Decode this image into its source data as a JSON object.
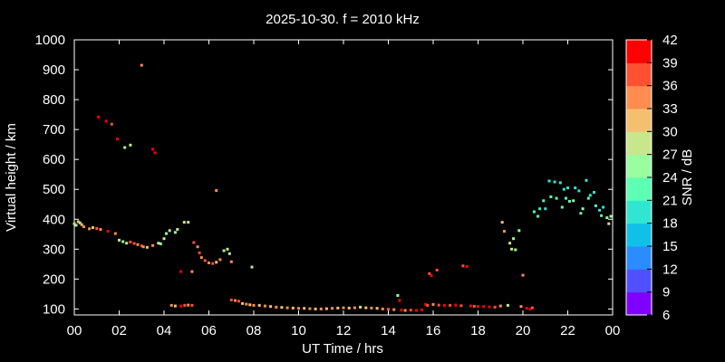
{
  "chart_data": {
    "type": "scatter",
    "title": "2025-10-30. f = 2010 kHz",
    "xlabel": "UT Time / hrs",
    "ylabel": "Virtual height / km",
    "xlim": [
      0,
      24
    ],
    "ylim": [
      80,
      1000
    ],
    "x_ticks": [
      "00",
      "02",
      "04",
      "06",
      "08",
      "10",
      "12",
      "14",
      "16",
      "18",
      "20",
      "22",
      "00"
    ],
    "y_ticks": [
      "100",
      "200",
      "300",
      "400",
      "500",
      "600",
      "700",
      "800",
      "900",
      "1000"
    ],
    "colorbar": {
      "label": "SNR / dB",
      "ticks": [
        "6",
        "9",
        "12",
        "15",
        "18",
        "21",
        "24",
        "27",
        "30",
        "33",
        "36",
        "39",
        "42"
      ],
      "colors": [
        "#8000ff",
        "#5050ff",
        "#2a8cff",
        "#10c0e6",
        "#30e6d0",
        "#5cffb4",
        "#98fea0",
        "#c8e68c",
        "#f4c070",
        "#ff8c50",
        "#ff5032",
        "#ff0000"
      ]
    },
    "background": "#000000",
    "points": [
      [
        0.0,
        385,
        24
      ],
      [
        0.08,
        380,
        27
      ],
      [
        0.17,
        392,
        30
      ],
      [
        0.25,
        388,
        27
      ],
      [
        0.33,
        382,
        30
      ],
      [
        0.42,
        375,
        33
      ],
      [
        0.67,
        368,
        33
      ],
      [
        0.83,
        372,
        30
      ],
      [
        1.0,
        369,
        36
      ],
      [
        1.17,
        366,
        33
      ],
      [
        1.5,
        360,
        39
      ],
      [
        1.83,
        352,
        33
      ],
      [
        2.0,
        330,
        27
      ],
      [
        2.17,
        325,
        24
      ],
      [
        2.33,
        320,
        27
      ],
      [
        2.5,
        324,
        36
      ],
      [
        2.67,
        319,
        36
      ],
      [
        2.83,
        315,
        33
      ],
      [
        3.0,
        311,
        36
      ],
      [
        3.08,
        308,
        33
      ],
      [
        3.25,
        306,
        30
      ],
      [
        3.5,
        312,
        33
      ],
      [
        3.75,
        320,
        27
      ],
      [
        3.85,
        318,
        24
      ],
      [
        4.0,
        335,
        27
      ],
      [
        4.1,
        352,
        24
      ],
      [
        4.25,
        362,
        27
      ],
      [
        4.5,
        356,
        24
      ],
      [
        4.6,
        366,
        27
      ],
      [
        1.08,
        742,
        42
      ],
      [
        1.42,
        728,
        42
      ],
      [
        1.67,
        718,
        36
      ],
      [
        1.92,
        668,
        39
      ],
      [
        2.25,
        640,
        24
      ],
      [
        2.5,
        648,
        27
      ],
      [
        3.0,
        915,
        33
      ],
      [
        3.5,
        634,
        42
      ],
      [
        3.6,
        622,
        42
      ],
      [
        6.33,
        496,
        33
      ],
      [
        4.75,
        225,
        42
      ],
      [
        4.9,
        390,
        27
      ],
      [
        5.08,
        390,
        27
      ],
      [
        5.25,
        225,
        33
      ],
      [
        5.33,
        322,
        36
      ],
      [
        5.5,
        308,
        33
      ],
      [
        5.58,
        288,
        36
      ],
      [
        5.67,
        272,
        33
      ],
      [
        5.83,
        262,
        36
      ],
      [
        6.0,
        254,
        33
      ],
      [
        6.17,
        252,
        36
      ],
      [
        6.33,
        256,
        30
      ],
      [
        6.5,
        265,
        33
      ],
      [
        6.67,
        295,
        24
      ],
      [
        6.83,
        300,
        27
      ],
      [
        6.92,
        285,
        27
      ],
      [
        7.0,
        258,
        33
      ],
      [
        7.92,
        240,
        27
      ],
      [
        4.33,
        112,
        33
      ],
      [
        4.5,
        110,
        30
      ],
      [
        4.75,
        110,
        42
      ],
      [
        4.92,
        112,
        36
      ],
      [
        5.08,
        113,
        33
      ],
      [
        5.25,
        112,
        36
      ],
      [
        7.0,
        130,
        36
      ],
      [
        7.17,
        128,
        33
      ],
      [
        7.33,
        126,
        36
      ],
      [
        7.5,
        118,
        30
      ],
      [
        7.67,
        116,
        33
      ],
      [
        7.83,
        114,
        30
      ],
      [
        8.0,
        112,
        33
      ],
      [
        8.25,
        112,
        30
      ],
      [
        8.5,
        110,
        33
      ],
      [
        8.75,
        108,
        30
      ],
      [
        9.0,
        106,
        33
      ],
      [
        9.25,
        105,
        30
      ],
      [
        9.5,
        104,
        33
      ],
      [
        9.75,
        103,
        30
      ],
      [
        10.0,
        102,
        33
      ],
      [
        10.25,
        102,
        30
      ],
      [
        10.5,
        101,
        33
      ],
      [
        10.75,
        100,
        30
      ],
      [
        11.0,
        100,
        33
      ],
      [
        11.25,
        101,
        30
      ],
      [
        11.5,
        102,
        33
      ],
      [
        11.75,
        103,
        30
      ],
      [
        12.0,
        104,
        33
      ],
      [
        12.25,
        103,
        30
      ],
      [
        12.5,
        104,
        33
      ],
      [
        12.75,
        106,
        27
      ],
      [
        13.0,
        104,
        30
      ],
      [
        13.25,
        103,
        33
      ],
      [
        13.5,
        102,
        30
      ],
      [
        13.75,
        100,
        33
      ],
      [
        14.0,
        99,
        36
      ],
      [
        14.25,
        98,
        33
      ],
      [
        14.42,
        145,
        24
      ],
      [
        14.5,
        128,
        39
      ],
      [
        14.58,
        96,
        39
      ],
      [
        14.75,
        95,
        33
      ],
      [
        15.0,
        96,
        36
      ],
      [
        15.25,
        95,
        39
      ],
      [
        15.5,
        97,
        39
      ],
      [
        15.67,
        115,
        39
      ],
      [
        15.75,
        112,
        36
      ],
      [
        15.83,
        218,
        36
      ],
      [
        15.92,
        212,
        39
      ],
      [
        16.0,
        115,
        33
      ],
      [
        16.17,
        230,
        36
      ],
      [
        16.25,
        113,
        36
      ],
      [
        16.5,
        112,
        39
      ],
      [
        16.75,
        112,
        36
      ],
      [
        17.0,
        113,
        39
      ],
      [
        17.25,
        111,
        36
      ],
      [
        17.33,
        244,
        36
      ],
      [
        17.5,
        242,
        39
      ],
      [
        17.67,
        110,
        39
      ],
      [
        17.83,
        109,
        36
      ],
      [
        18.0,
        108,
        39
      ],
      [
        18.25,
        108,
        39
      ],
      [
        18.5,
        107,
        39
      ],
      [
        18.75,
        106,
        36
      ],
      [
        19.0,
        110,
        33
      ],
      [
        19.08,
        390,
        30
      ],
      [
        19.17,
        360,
        33
      ],
      [
        19.33,
        112,
        27
      ],
      [
        19.42,
        320,
        27
      ],
      [
        19.5,
        300,
        27
      ],
      [
        19.58,
        335,
        24
      ],
      [
        19.67,
        298,
        24
      ],
      [
        19.83,
        362,
        24
      ],
      [
        19.92,
        108,
        33
      ],
      [
        20.0,
        213,
        33
      ],
      [
        20.17,
        102,
        39
      ],
      [
        20.33,
        100,
        39
      ],
      [
        20.42,
        104,
        36
      ],
      [
        20.5,
        425,
        21
      ],
      [
        20.67,
        410,
        21
      ],
      [
        20.75,
        435,
        18
      ],
      [
        20.92,
        462,
        21
      ],
      [
        21.0,
        435,
        18
      ],
      [
        21.17,
        528,
        18
      ],
      [
        21.25,
        475,
        21
      ],
      [
        21.42,
        525,
        18
      ],
      [
        21.5,
        470,
        21
      ],
      [
        21.67,
        522,
        18
      ],
      [
        21.75,
        440,
        21
      ],
      [
        21.83,
        500,
        18
      ],
      [
        21.92,
        470,
        21
      ],
      [
        22.0,
        505,
        18
      ],
      [
        22.08,
        460,
        21
      ],
      [
        22.25,
        462,
        24
      ],
      [
        22.33,
        505,
        18
      ],
      [
        22.5,
        495,
        18
      ],
      [
        22.58,
        420,
        21
      ],
      [
        22.67,
        435,
        24
      ],
      [
        22.83,
        530,
        18
      ],
      [
        22.92,
        470,
        21
      ],
      [
        23.0,
        480,
        18
      ],
      [
        23.17,
        490,
        18
      ],
      [
        23.25,
        445,
        21
      ],
      [
        23.42,
        430,
        18
      ],
      [
        23.5,
        412,
        21
      ],
      [
        23.58,
        440,
        18
      ],
      [
        23.75,
        405,
        24
      ],
      [
        23.83,
        385,
        27
      ],
      [
        23.92,
        410,
        24
      ]
    ]
  }
}
